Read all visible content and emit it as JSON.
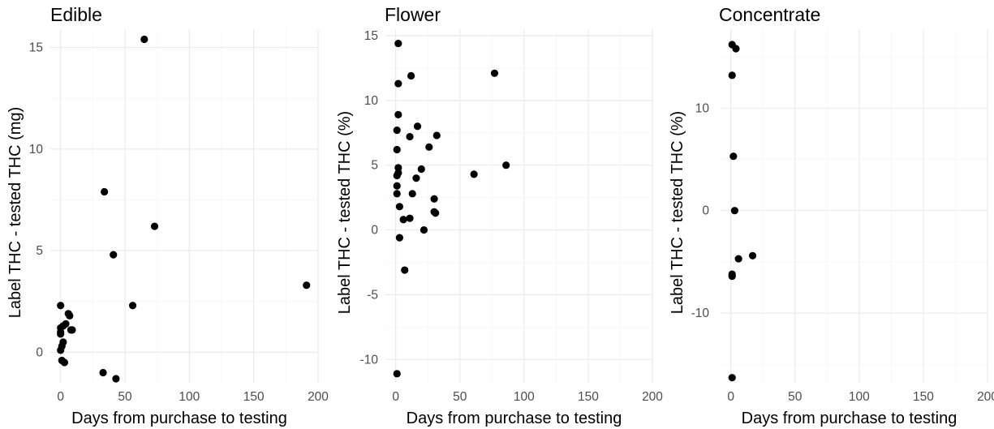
{
  "chart_data": [
    {
      "type": "scatter",
      "title": "Edible",
      "xlabel": "Days from purchase to testing",
      "ylabel": "Label THC - tested THC (mg)",
      "xlim": [
        -8,
        200
      ],
      "ylim": [
        -1.5,
        15.9
      ],
      "xticks": [
        0,
        50,
        100,
        150,
        200
      ],
      "yticks": [
        0,
        5,
        10,
        15
      ],
      "grid": true,
      "points": [
        {
          "x": 65,
          "y": 15.4
        },
        {
          "x": 34,
          "y": 7.9
        },
        {
          "x": 73,
          "y": 6.2
        },
        {
          "x": 41,
          "y": 4.8
        },
        {
          "x": 191,
          "y": 3.3
        },
        {
          "x": 56,
          "y": 2.3
        },
        {
          "x": 0,
          "y": 2.3
        },
        {
          "x": 6,
          "y": 1.9
        },
        {
          "x": 7,
          "y": 1.8
        },
        {
          "x": 4,
          "y": 1.4
        },
        {
          "x": 2,
          "y": 1.3
        },
        {
          "x": 0,
          "y": 1.2
        },
        {
          "x": 8,
          "y": 1.1
        },
        {
          "x": 9,
          "y": 1.1
        },
        {
          "x": 0,
          "y": 1.0
        },
        {
          "x": 0,
          "y": 0.9
        },
        {
          "x": 2,
          "y": 0.5
        },
        {
          "x": 1,
          "y": 0.3
        },
        {
          "x": 0,
          "y": 0.1
        },
        {
          "x": 1,
          "y": -0.4
        },
        {
          "x": 3,
          "y": -0.5
        },
        {
          "x": 33,
          "y": -1.0
        },
        {
          "x": 43,
          "y": -1.3
        }
      ]
    },
    {
      "type": "scatter",
      "title": "Flower",
      "xlabel": "Days from purchase to testing",
      "ylabel": "Label THC - tested THC (%)",
      "xlim": [
        -8,
        200
      ],
      "ylim": [
        -11.8,
        15.5
      ],
      "xticks": [
        0,
        50,
        100,
        150,
        200
      ],
      "yticks": [
        -10,
        -5,
        0,
        5,
        10,
        15
      ],
      "grid": true,
      "points": [
        {
          "x": 2,
          "y": 14.4
        },
        {
          "x": 12,
          "y": 11.9
        },
        {
          "x": 77,
          "y": 12.1
        },
        {
          "x": 2,
          "y": 11.3
        },
        {
          "x": 2,
          "y": 8.9
        },
        {
          "x": 17,
          "y": 8.0
        },
        {
          "x": 1,
          "y": 7.7
        },
        {
          "x": 11,
          "y": 7.2
        },
        {
          "x": 32,
          "y": 7.3
        },
        {
          "x": 26,
          "y": 6.4
        },
        {
          "x": 1,
          "y": 6.2
        },
        {
          "x": 86,
          "y": 5.0
        },
        {
          "x": 2,
          "y": 4.8
        },
        {
          "x": 20,
          "y": 4.7
        },
        {
          "x": 2,
          "y": 4.4
        },
        {
          "x": 61,
          "y": 4.3
        },
        {
          "x": 1,
          "y": 4.2
        },
        {
          "x": 16,
          "y": 4.0
        },
        {
          "x": 1,
          "y": 3.4
        },
        {
          "x": 1,
          "y": 2.8
        },
        {
          "x": 13,
          "y": 2.8
        },
        {
          "x": 30,
          "y": 2.4
        },
        {
          "x": 3,
          "y": 1.8
        },
        {
          "x": 30,
          "y": 1.4
        },
        {
          "x": 31,
          "y": 1.3
        },
        {
          "x": 11,
          "y": 0.9
        },
        {
          "x": 6,
          "y": 0.8
        },
        {
          "x": 22,
          "y": 0.0
        },
        {
          "x": 3,
          "y": -0.6
        },
        {
          "x": 7,
          "y": -3.1
        },
        {
          "x": 1,
          "y": -11.1
        }
      ]
    },
    {
      "type": "scatter",
      "title": "Concentrate",
      "xlabel": "Days from purchase to testing",
      "ylabel": "Label THC - tested THC (%)",
      "xlim": [
        -8,
        200
      ],
      "ylim": [
        -16.8,
        17.7
      ],
      "xticks": [
        0,
        50,
        100,
        150,
        200
      ],
      "yticks": [
        -10,
        0,
        10
      ],
      "grid": true,
      "points": [
        {
          "x": 1,
          "y": 16.2
        },
        {
          "x": 4,
          "y": 15.8
        },
        {
          "x": 1,
          "y": 13.2
        },
        {
          "x": 2,
          "y": 5.3
        },
        {
          "x": 3,
          "y": 0.0
        },
        {
          "x": 17,
          "y": -4.4
        },
        {
          "x": 6,
          "y": -4.7
        },
        {
          "x": 1,
          "y": -6.2
        },
        {
          "x": 1,
          "y": -6.4
        },
        {
          "x": 1,
          "y": -16.3
        }
      ]
    }
  ]
}
